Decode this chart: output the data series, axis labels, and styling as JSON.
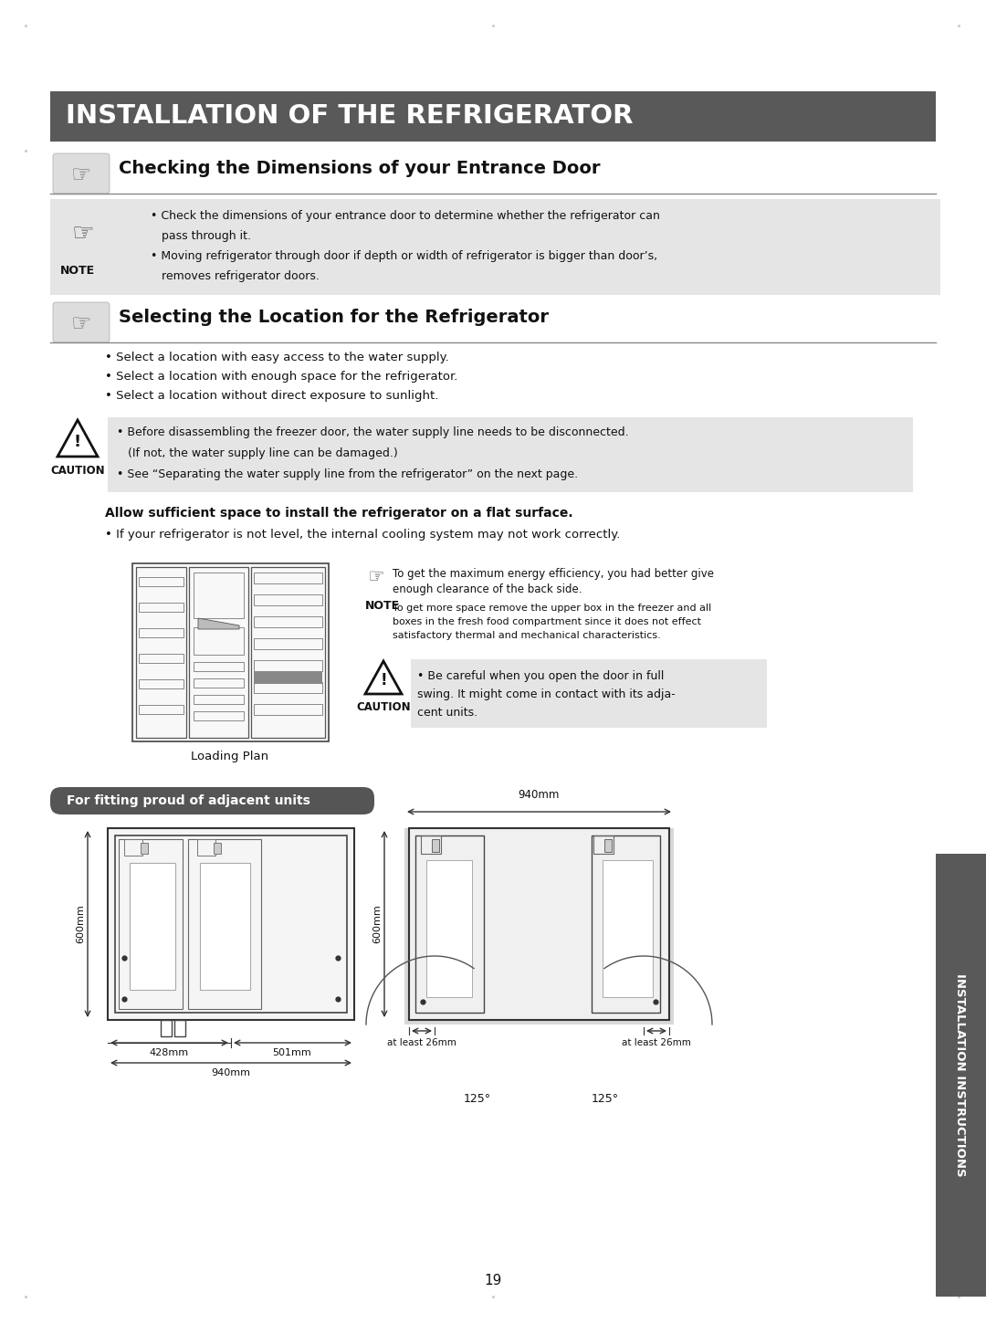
{
  "bg_color": "#ffffff",
  "header_bg": "#595959",
  "header_text": "INSTALLATION OF THE REFRIGERATOR",
  "header_text_color": "#ffffff",
  "section1_title": "Checking the Dimensions of your Entrance Door",
  "section2_title": "Selecting the Location for the Refrigerator",
  "note_bg": "#e5e5e5",
  "caution_bg": "#e5e5e5",
  "note1_lines": [
    "• Check the dimensions of your entrance door to determine whether the refrigerator can",
    "   pass through it.",
    "• Moving refrigerator through door if depth or width of refrigerator is bigger than door’s,",
    "   removes refrigerator doors."
  ],
  "select_bullets": [
    "• Select a location with easy access to the water supply.",
    "• Select a location with enough space for the refrigerator.",
    "• Select a location without direct exposure to sunlight."
  ],
  "caution_lines": [
    "• Before disassembling the freezer door, the water supply line needs to be disconnected.",
    "   (If not, the water supply line can be damaged.)",
    "• See “Separating the water supply line from the refrigerator” on the next page."
  ],
  "flat_surface_bold": "Allow sufficient space to install the refrigerator on a flat surface.",
  "flat_surface_bullet": "• If your refrigerator is not level, the internal cooling system may not work correctly.",
  "loading_plan_label": "Loading Plan",
  "note2_line1": "To get the maximum energy efficiency, you had better give",
  "note2_line2": "enough clearance of the back side.",
  "note2_line3": "To get more space remove the upper box in the freezer and all",
  "note2_line4": "boxes in the fresh food compartment since it does not effect",
  "note2_line5": "satisfactory thermal and mechanical characteristics.",
  "caution2_lines": [
    "• Be careful when you open the door in full",
    "swing. It might come in contact with its adja-",
    "cent units."
  ],
  "fitting_label": "For fitting proud of adjacent units",
  "fitting_bg": "#555555",
  "fitting_text_color": "#ffffff",
  "dim_940_top": "940mm",
  "dim_600_left1": "600mm",
  "dim_600_left2": "600mm",
  "dim_428": "428mm",
  "dim_501": "501mm",
  "dim_940_bot": "940mm",
  "dim_26_left": "at least 26mm",
  "dim_26_right": "at least 26mm",
  "dim_125_left": "125°",
  "dim_125_right": "125°",
  "page_number": "19",
  "sidebar_text": "INSTALLATION INSTRUCTIONS",
  "sidebar_bg": "#595959",
  "sidebar_text_color": "#ffffff",
  "line_color": "#aaaaaa",
  "dark_line": "#333333"
}
